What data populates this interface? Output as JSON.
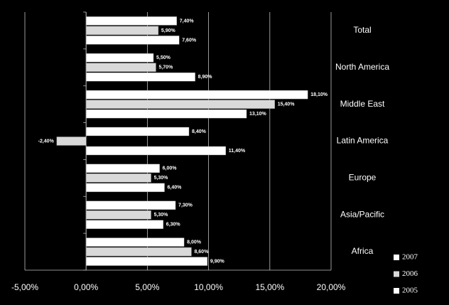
{
  "chart_data": {
    "type": "hbar",
    "categories": [
      "Total",
      "North America",
      "Middle East",
      "Latin America",
      "Europe",
      "Asia/Pacific",
      "Africa"
    ],
    "series": [
      {
        "name": "2007",
        "color": "#ffffff",
        "values": [
          7.4,
          5.5,
          18.1,
          8.4,
          6.0,
          7.3,
          8.0
        ],
        "value_labels": [
          "7,40%",
          "5,50%",
          "18,10%",
          "8,40%",
          "6,00%",
          "7,30%",
          "8,00%"
        ]
      },
      {
        "name": "2006",
        "color": "#d9d9d9",
        "values": [
          5.9,
          5.7,
          15.4,
          -2.4,
          5.3,
          5.3,
          8.6
        ],
        "value_labels": [
          "5,90%",
          "5,70%",
          "15,40%",
          "-2,40%",
          "5,30%",
          "5,30%",
          "8,60%"
        ]
      },
      {
        "name": "2005",
        "color": "#ffffff",
        "values": [
          7.6,
          8.9,
          13.1,
          11.4,
          6.4,
          6.3,
          9.9
        ],
        "value_labels": [
          "7,60%",
          "8,90%",
          "13,10%",
          "11,40%",
          "6,40%",
          "6,30%",
          "9,90%"
        ]
      }
    ],
    "xlim": [
      -5,
      20
    ],
    "xticks": [
      {
        "value": -5,
        "label": "-5,00%"
      },
      {
        "value": 0,
        "label": "0,00%"
      },
      {
        "value": 5,
        "label": "5,00%"
      },
      {
        "value": 10,
        "label": "10,00%"
      },
      {
        "value": 15,
        "label": "15,00%"
      },
      {
        "value": 20,
        "label": "20,00%"
      }
    ],
    "grid": true,
    "legend": "bottom-right"
  }
}
